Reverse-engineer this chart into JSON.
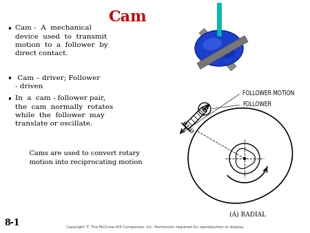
{
  "title": "Cam",
  "title_color": "#cc0000",
  "title_fontsize": 16,
  "bg_color": "#ffffff",
  "bullet1": "Cam -  A  mechanical\ndevice  used  to  transmit\nmotion  to  a  follower  by\ndirect contact.",
  "bullet2": " Cam – driver; Follower\n- driven",
  "bullet3": "In  a  cam - follower pair,\nthe  cam  normally  rotates\nwhile  the  follower  may\ntranslate or oscillate.",
  "sub_text": "    Cams are used to convert rotary\n    motion into reciprocating motion",
  "label_follower_motion": "FOLLOWER MOTION",
  "label_follower": "FOLLOWER",
  "label_radial": "(A) RADIAL",
  "label_slide_num": "8-1",
  "copyright": "Copyright © The McGraw-Hill Companies, Inc. Permission required for reproduction or display.",
  "text_color": "#000000",
  "bullet_fontsize": 7.5,
  "sub_fontsize": 7.0,
  "fig_width": 4.5,
  "fig_height": 3.38,
  "dpi": 100
}
